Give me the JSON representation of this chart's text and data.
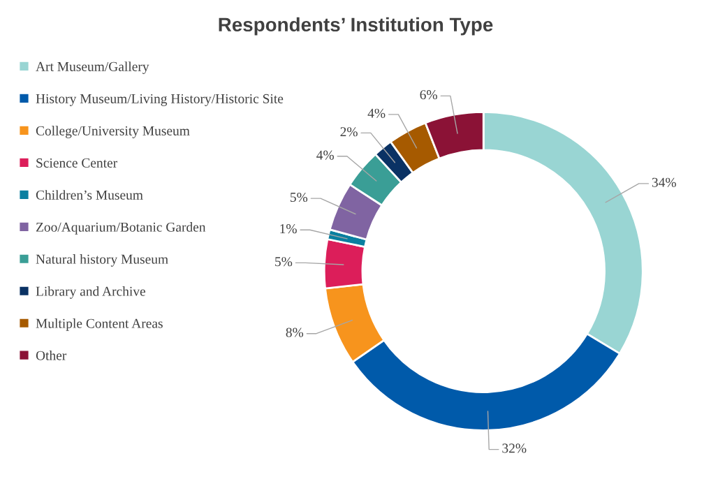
{
  "chart_data": {
    "type": "donut",
    "title": "Respondents’ Institution Type",
    "categories": [
      "Art Museum/Gallery",
      "History Museum/Living History/Historic Site",
      "College/University Museum",
      "Science Center",
      "Children’s Museum",
      "Zoo/Aquarium/Botanic Garden",
      "Natural history Museum",
      "Library and Archive",
      "Multiple Content Areas",
      "Other"
    ],
    "values": [
      34,
      32,
      8,
      5,
      1,
      5,
      4,
      2,
      4,
      6
    ],
    "colors": [
      "#99d5d3",
      "#005aaa",
      "#f7941d",
      "#dc1e5a",
      "#0a7fa0",
      "#8064a2",
      "#3a9e96",
      "#0a3264",
      "#a65a00",
      "#8b1236"
    ],
    "value_labels": [
      "34%",
      "32%",
      "8%",
      "5%",
      "1%",
      "5%",
      "4%",
      "2%",
      "4%",
      "6%"
    ],
    "legend": "left"
  }
}
